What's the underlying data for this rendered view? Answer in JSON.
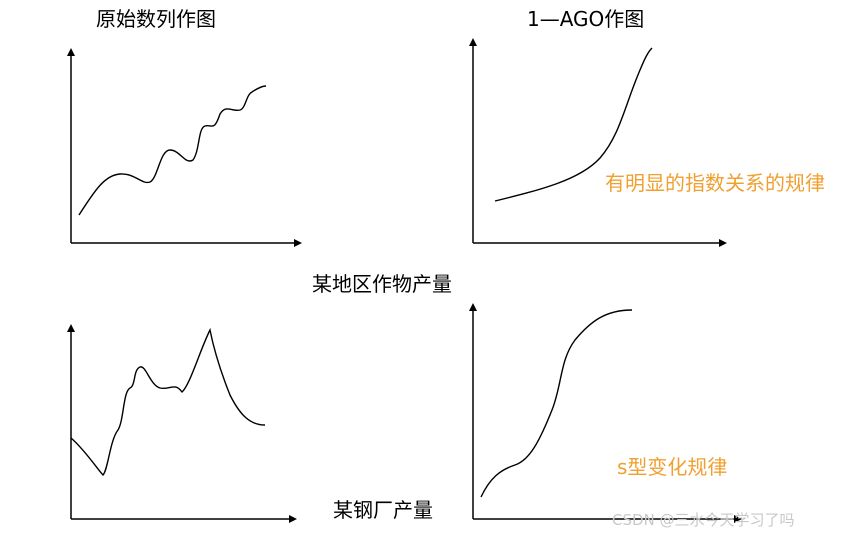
{
  "panels": [
    {
      "title": "原始数列作图"
    },
    {
      "title": "1—AGO作图",
      "note": "有明显的指数关系的规律"
    },
    {
      "title": "某地区作物产量"
    },
    {
      "title": "某钢厂产量",
      "note": "s型变化规律"
    }
  ],
  "watermark": "CSDN @三水今天学习了吗"
}
